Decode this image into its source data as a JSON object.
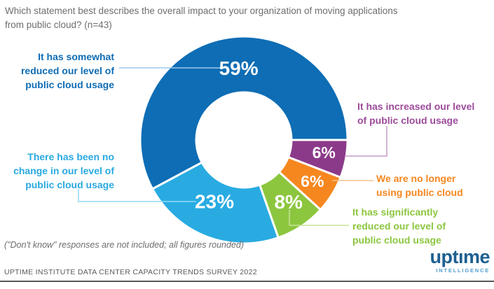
{
  "title": {
    "lines": [
      "Which statement best describes the overall impact to your organization of moving applications",
      "from public cloud? (n=43)"
    ]
  },
  "chart_data": {
    "type": "pie",
    "subtype": "donut",
    "title": "Which statement best describes the overall impact to your organization of moving applications from public cloud? (n=43)",
    "n": 43,
    "unit": "%",
    "categories": [
      "It has somewhat reduced our level of public cloud usage",
      "There has been no change in our level of public cloud usage",
      "It has significantly reduced our level of public cloud usage",
      "We are no longer using public cloud",
      "It has increased our level of public cloud usage"
    ],
    "values": [
      59,
      23,
      8,
      6,
      6
    ],
    "value_labels": [
      "59%",
      "23%",
      "8%",
      "6%",
      "6%"
    ],
    "colors": [
      "#0e6db4",
      "#29abe2",
      "#8cc63f",
      "#f6871f",
      "#8b3a8a"
    ],
    "slice_ids": [
      "somewhat-reduced",
      "no-change",
      "significantly-reduced",
      "no-longer-using",
      "increased"
    ],
    "legend_position": "callout labels around donut",
    "note": "(\"Don't know\" responses are not included; all figures rounded)",
    "source": "UPTIME INSTITUTE DATA CENTER CAPACITY TRENDS SURVEY 2022"
  },
  "callouts": [
    {
      "id": "somewhat",
      "lines": [
        "It has somewhat",
        "reduced our level of",
        "public cloud usage"
      ],
      "color": "#0f6cb4",
      "leader_color": "#9dc8e8"
    },
    {
      "id": "nochange",
      "lines": [
        "There has been no",
        "change in our level of",
        "public cloud usage"
      ],
      "color": "#29a9e0",
      "leader_color": "#96d9f6"
    },
    {
      "id": "increased",
      "lines": [
        "It has increased our level",
        "of public cloud usage"
      ],
      "color": "#9c4a9a",
      "leader_color": "#c79bc9"
    },
    {
      "id": "nolonger",
      "lines": [
        "We are no longer",
        "using public cloud"
      ],
      "color": "#f6871f",
      "leader_color": "#f9c18e"
    },
    {
      "id": "significantly",
      "lines": [
        "It has significantly",
        "reduced our level of",
        "public cloud usage"
      ],
      "color": "#8cc63f",
      "leader_color": "#c7e395"
    }
  ],
  "footnote": "(\"Don't know\" responses are not included; all figures rounded)",
  "source_line": "UPTIME INSTITUTE DATA CENTER CAPACITY TRENDS SURVEY 2022",
  "logo": {
    "wordmark": "uptıme",
    "tagline": "INTELLIGENCE",
    "wordmark_color": "#1c5f90",
    "tagline_color": "#4f9ecf"
  }
}
